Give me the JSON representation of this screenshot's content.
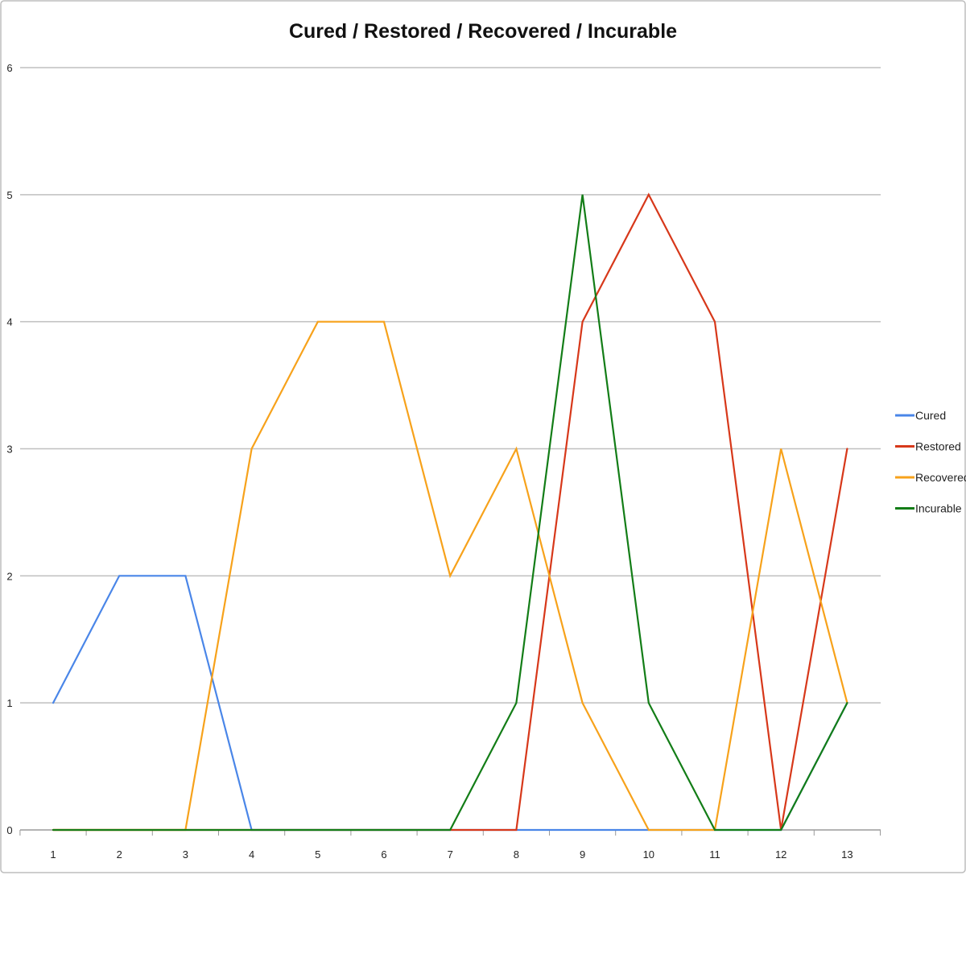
{
  "chart_data": {
    "type": "line",
    "title": "Cured  / Restored / Recovered / Incurable",
    "xlabel": "",
    "ylabel": "",
    "categories": [
      "1",
      "2",
      "3",
      "4",
      "5",
      "6",
      "7",
      "8",
      "9",
      "10",
      "11",
      "12",
      "13"
    ],
    "ylim": [
      0,
      6
    ],
    "yticks": [
      "0",
      "1",
      "2",
      "3",
      "4",
      "5",
      "6"
    ],
    "grid": true,
    "legend_position": "right",
    "series": [
      {
        "name": "Cured",
        "color": "#4a86e8",
        "values": [
          1,
          2,
          2,
          0,
          0,
          0,
          0,
          0,
          0,
          0,
          0,
          0,
          1
        ]
      },
      {
        "name": "Restored",
        "color": "#d7381a",
        "values": [
          0,
          0,
          0,
          0,
          0,
          0,
          0,
          0,
          4,
          5,
          4,
          0,
          3
        ]
      },
      {
        "name": "Recovered",
        "color": "#f7a21b",
        "values": [
          0,
          0,
          0,
          3,
          4,
          4,
          2,
          3,
          1,
          0,
          0,
          3,
          1
        ]
      },
      {
        "name": "Incurable",
        "color": "#137d17",
        "values": [
          0,
          0,
          0,
          0,
          0,
          0,
          0,
          1,
          5,
          1,
          0,
          0,
          1
        ]
      }
    ]
  }
}
